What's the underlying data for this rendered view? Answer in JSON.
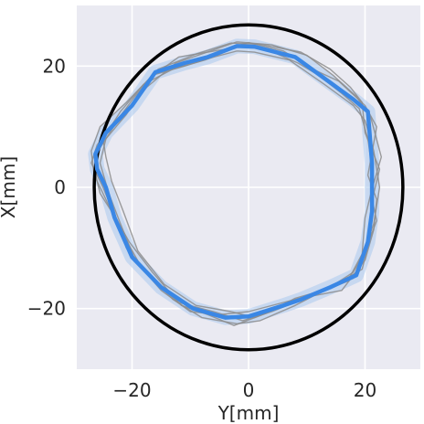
{
  "chart_data": {
    "type": "line",
    "title": "",
    "xlabel": "Y[mm]",
    "ylabel": "X[mm]",
    "xlim": [
      -29.5,
      29.5
    ],
    "ylim": [
      -30,
      30
    ],
    "xticks": [
      -20,
      0,
      20
    ],
    "yticks": [
      -20,
      0,
      20
    ],
    "xtick_labels": [
      "−20",
      "0",
      "20"
    ],
    "ytick_labels": [
      "−20",
      "0",
      "20"
    ],
    "grid": true,
    "background": "#eaeaf2",
    "reference_circle": {
      "center": [
        0,
        0
      ],
      "radius_x": 26.5,
      "radius_y": 26.8,
      "color": "#000000"
    },
    "mean_path": {
      "color": "#3a87e5",
      "band_color": "#a9c8ee",
      "points": [
        [
          -2,
          23.3
        ],
        [
          1,
          23.2
        ],
        [
          8,
          21.5
        ],
        [
          13,
          18
        ],
        [
          18,
          14.5
        ],
        [
          20.5,
          12.5
        ],
        [
          21.2,
          4
        ],
        [
          21.2,
          -4
        ],
        [
          20.5,
          -9
        ],
        [
          18.5,
          -14.5
        ],
        [
          14,
          -16.5
        ],
        [
          9,
          -18.5
        ],
        [
          6,
          -19.5
        ],
        [
          0,
          -21.3
        ],
        [
          -4,
          -21.5
        ],
        [
          -9.5,
          -20
        ],
        [
          -15,
          -16.5
        ],
        [
          -20,
          -11.5
        ],
        [
          -23,
          -5
        ],
        [
          -24.5,
          0
        ],
        [
          -26,
          3
        ],
        [
          -26.3,
          5.5
        ],
        [
          -24.5,
          9
        ],
        [
          -20,
          13.5
        ],
        [
          -16,
          19
        ],
        [
          -11,
          20.5
        ],
        [
          -7,
          21.5
        ],
        [
          -2,
          23.3
        ]
      ]
    },
    "trial_paths": {
      "color": "#8c8c8c",
      "series": [
        [
          [
            -2,
            22.5
          ],
          [
            1,
            22.3
          ],
          [
            7,
            21
          ],
          [
            13,
            17
          ],
          [
            18,
            13.5
          ],
          [
            20,
            11
          ],
          [
            21.5,
            6
          ],
          [
            22.5,
            0
          ],
          [
            21.5,
            -6
          ],
          [
            20,
            -10
          ],
          [
            18,
            -15
          ],
          [
            12,
            -17.5
          ],
          [
            6,
            -19
          ],
          [
            0,
            -20.5
          ],
          [
            -5,
            -21
          ],
          [
            -10,
            -20.5
          ],
          [
            -15,
            -17
          ],
          [
            -19.5,
            -12
          ],
          [
            -22,
            -6
          ],
          [
            -24,
            -1
          ],
          [
            -25.5,
            4
          ],
          [
            -24.5,
            8
          ],
          [
            -21,
            12
          ],
          [
            -16.5,
            18.5
          ],
          [
            -11,
            20
          ],
          [
            -6,
            21.5
          ],
          [
            -2,
            22.5
          ]
        ],
        [
          [
            -3,
            23.8
          ],
          [
            2,
            23.6
          ],
          [
            9,
            22.3
          ],
          [
            14,
            19.5
          ],
          [
            17.5,
            16.5
          ],
          [
            19.5,
            14
          ],
          [
            20,
            9
          ],
          [
            22.5,
            3
          ],
          [
            21,
            -3
          ],
          [
            21,
            -8
          ],
          [
            19.5,
            -13.5
          ],
          [
            15,
            -16
          ],
          [
            8,
            -19.5
          ],
          [
            2,
            -22
          ],
          [
            -2,
            -22.5
          ],
          [
            -8,
            -21.5
          ],
          [
            -13,
            -18.5
          ],
          [
            -18.5,
            -13
          ],
          [
            -22,
            -7
          ],
          [
            -25,
            0
          ],
          [
            -27,
            4
          ],
          [
            -26,
            7
          ],
          [
            -23,
            10.5
          ],
          [
            -19.5,
            15
          ],
          [
            -15.5,
            19.5
          ],
          [
            -9,
            22
          ],
          [
            -3,
            23.8
          ]
        ],
        [
          [
            -1,
            23.5
          ],
          [
            3,
            22.8
          ],
          [
            8.5,
            20.5
          ],
          [
            12,
            18.5
          ],
          [
            16,
            15.5
          ],
          [
            19,
            13
          ],
          [
            20.5,
            8
          ],
          [
            21.5,
            1
          ],
          [
            20,
            -5
          ],
          [
            19.5,
            -11
          ],
          [
            17,
            -15.5
          ],
          [
            13,
            -17
          ],
          [
            7.5,
            -19
          ],
          [
            1,
            -21.5
          ],
          [
            -3,
            -20.5
          ],
          [
            -9,
            -19.5
          ],
          [
            -14.5,
            -16
          ],
          [
            -19,
            -10.5
          ],
          [
            -21.5,
            -4
          ],
          [
            -23.5,
            1
          ],
          [
            -24.5,
            5
          ],
          [
            -25,
            8
          ],
          [
            -22,
            12.5
          ],
          [
            -18,
            17
          ],
          [
            -13,
            19.5
          ],
          [
            -7.5,
            21
          ],
          [
            -1,
            23.5
          ]
        ],
        [
          [
            -4,
            22.8
          ],
          [
            0,
            23.9
          ],
          [
            6,
            22.5
          ],
          [
            11,
            19.5
          ],
          [
            15.5,
            17.5
          ],
          [
            20,
            13.5
          ],
          [
            22,
            10
          ],
          [
            20.5,
            2
          ],
          [
            22,
            -2
          ],
          [
            21.5,
            -7
          ],
          [
            20,
            -12
          ],
          [
            16,
            -17
          ],
          [
            10.5,
            -18
          ],
          [
            4,
            -20.5
          ],
          [
            -1,
            -22
          ],
          [
            -6,
            -20.5
          ],
          [
            -12,
            -19
          ],
          [
            -16.5,
            -14
          ],
          [
            -20.5,
            -9
          ],
          [
            -24,
            -3
          ],
          [
            -26.5,
            2
          ],
          [
            -27,
            6
          ],
          [
            -25.5,
            10
          ],
          [
            -21,
            14
          ],
          [
            -17,
            18
          ],
          [
            -12,
            21.5
          ],
          [
            -4,
            22.8
          ]
        ],
        [
          [
            -2,
            24
          ],
          [
            4,
            23.5
          ],
          [
            10,
            21.8
          ],
          [
            14.5,
            18.5
          ],
          [
            18.5,
            15
          ],
          [
            21,
            11.5
          ],
          [
            22.8,
            5
          ],
          [
            21,
            -1
          ],
          [
            22,
            -5.5
          ],
          [
            20,
            -10.5
          ],
          [
            18,
            -14
          ],
          [
            13.5,
            -16.8
          ],
          [
            8,
            -18.3
          ],
          [
            3,
            -20.8
          ],
          [
            -2.5,
            -22.8
          ],
          [
            -7,
            -21
          ],
          [
            -11.5,
            -19.5
          ],
          [
            -16,
            -15.5
          ],
          [
            -21,
            -10
          ],
          [
            -22.5,
            -5.5
          ],
          [
            -25.5,
            -1
          ],
          [
            -26.5,
            3
          ],
          [
            -25.5,
            6.5
          ],
          [
            -22.5,
            11
          ],
          [
            -17.5,
            16.5
          ],
          [
            -12.5,
            20.5
          ],
          [
            -2,
            24
          ]
        ]
      ]
    }
  }
}
